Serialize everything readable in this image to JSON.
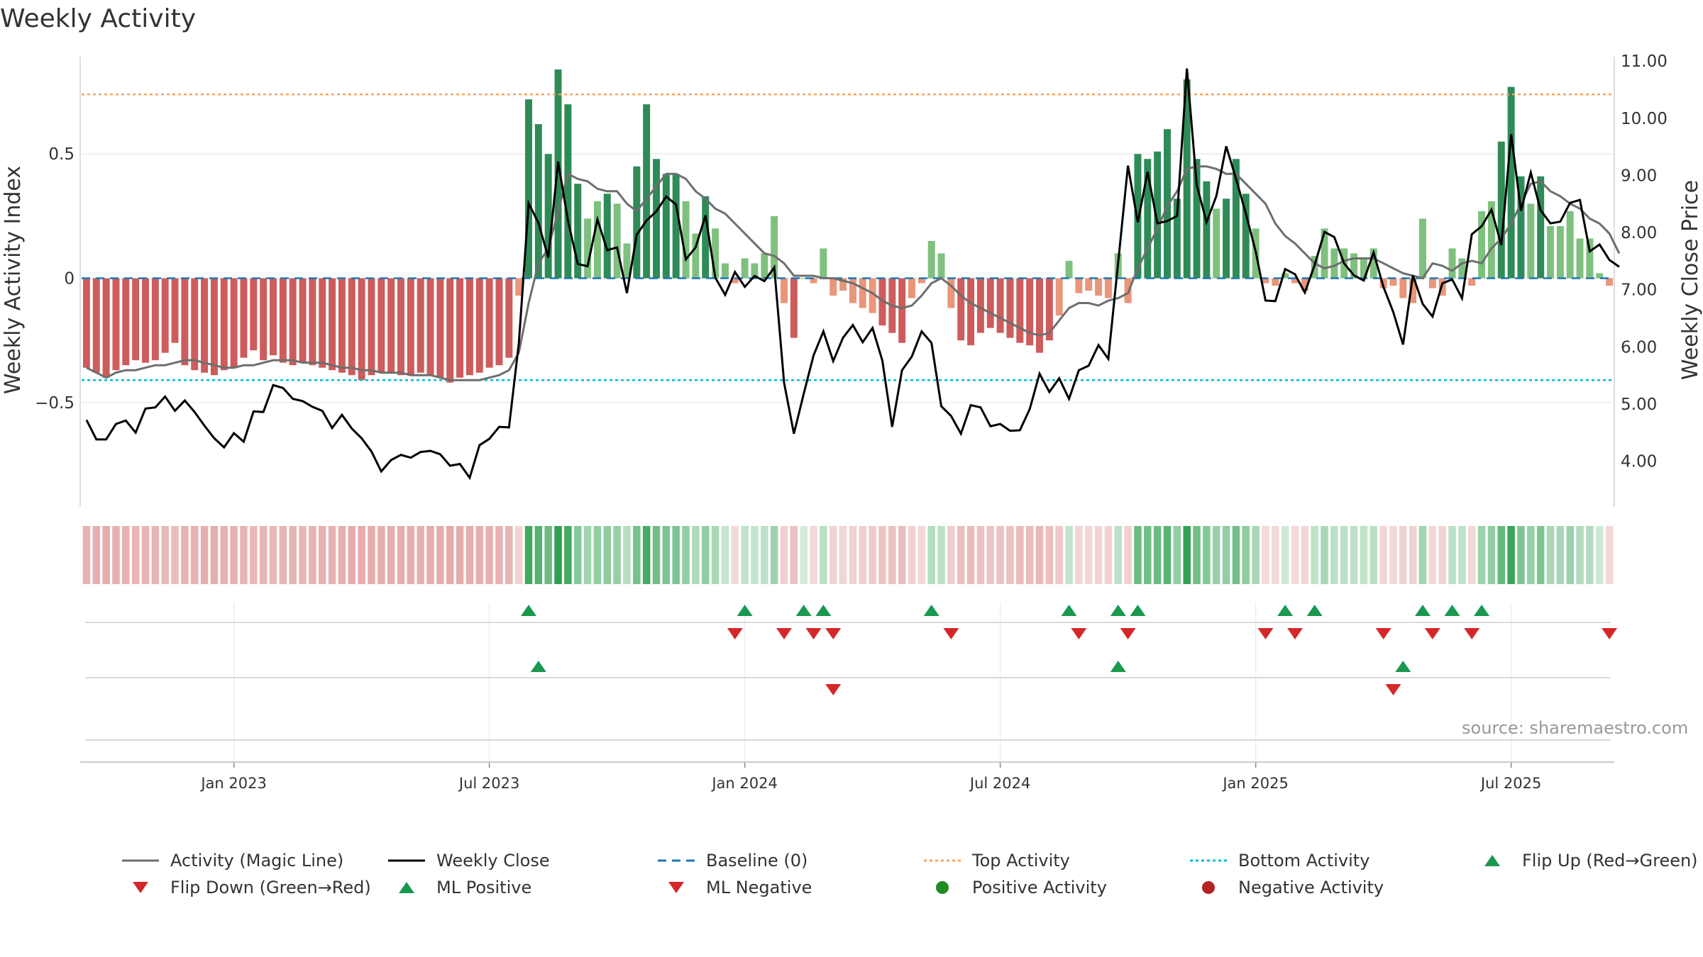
{
  "title": "Weekly Activity",
  "source": "source: sharemaestro.com",
  "chart_data": {
    "type": "bar",
    "title": "Weekly Activity",
    "ylabel_left": "Weekly Activity Index",
    "ylabel_right": "Weekly Close Price",
    "ylim_left": [
      -0.92,
      0.92
    ],
    "ylim_right": [
      3.2,
      11.2
    ],
    "left_ticks": [
      {
        "value": 0.5,
        "label": "0.5"
      },
      {
        "value": 0,
        "label": "0"
      },
      {
        "value": -0.5,
        "label": "−0.5"
      }
    ],
    "right_ticks": [
      {
        "value": 11,
        "label": "11.00"
      },
      {
        "value": 10,
        "label": "10.00"
      },
      {
        "value": 9,
        "label": "9.00"
      },
      {
        "value": 8,
        "label": "8.00"
      },
      {
        "value": 7,
        "label": "7.00"
      },
      {
        "value": 6,
        "label": "6.00"
      },
      {
        "value": 5,
        "label": "5.00"
      },
      {
        "value": 4,
        "label": "4.00"
      }
    ],
    "x_ticks": [
      {
        "week": 15,
        "label": "Jan 2023"
      },
      {
        "week": 41,
        "label": "Jul 2023"
      },
      {
        "week": 67,
        "label": "Jan 2024"
      },
      {
        "week": 93,
        "label": "Jul 2024"
      },
      {
        "week": 119,
        "label": "Jan 2025"
      },
      {
        "week": 145,
        "label": "Jul 2025"
      }
    ],
    "top_activity": 0.74,
    "bottom_activity": -0.41,
    "baseline": 0,
    "activity": [
      -0.36,
      -0.38,
      -0.4,
      -0.37,
      -0.35,
      -0.33,
      -0.34,
      -0.33,
      -0.3,
      -0.26,
      -0.35,
      -0.37,
      -0.38,
      -0.39,
      -0.37,
      -0.36,
      -0.32,
      -0.29,
      -0.33,
      -0.31,
      -0.34,
      -0.35,
      -0.34,
      -0.35,
      -0.36,
      -0.37,
      -0.38,
      -0.39,
      -0.41,
      -0.39,
      -0.38,
      -0.38,
      -0.39,
      -0.39,
      -0.38,
      -0.39,
      -0.4,
      -0.42,
      -0.4,
      -0.39,
      -0.38,
      -0.36,
      -0.35,
      -0.32,
      -0.07,
      0.72,
      0.62,
      0.5,
      0.84,
      0.7,
      0.38,
      0.24,
      0.31,
      0.34,
      0.3,
      0.14,
      0.45,
      0.7,
      0.48,
      0.42,
      0.42,
      0.31,
      0.18,
      0.33,
      0.2,
      0.06,
      -0.02,
      0.08,
      0.06,
      0.1,
      0.25,
      -0.1,
      -0.24,
      0,
      -0.02,
      0.12,
      -0.07,
      -0.05,
      -0.1,
      -0.12,
      -0.14,
      -0.19,
      -0.22,
      -0.26,
      -0.08,
      -0.02,
      0.15,
      0.1,
      -0.12,
      -0.25,
      -0.27,
      -0.22,
      -0.2,
      -0.22,
      -0.24,
      -0.26,
      -0.27,
      -0.3,
      -0.25,
      -0.15,
      0.07,
      -0.06,
      -0.05,
      -0.07,
      -0.08,
      0.1,
      -0.1,
      0.5,
      0.48,
      0.51,
      0.6,
      0.32,
      0.8,
      0.48,
      0.39,
      0.28,
      0.32,
      0.48,
      0.34,
      0.2,
      -0.02,
      -0.03,
      0.02,
      -0.02,
      -0.05,
      0.09,
      0.2,
      0.12,
      0.12,
      0.1,
      0.08,
      0.12,
      -0.04,
      -0.03,
      -0.08,
      -0.1,
      0.24,
      -0.04,
      -0.07,
      0.12,
      0.08,
      -0.03,
      0.27,
      0.31,
      0.55,
      0.77,
      0.41,
      0.3,
      0.41,
      0.21,
      0.21,
      0.27,
      0.16,
      0.16,
      0.02,
      -0.03
    ],
    "magic_line": [
      -0.36,
      -0.38,
      -0.4,
      -0.38,
      -0.37,
      -0.37,
      -0.36,
      -0.35,
      -0.35,
      -0.34,
      -0.33,
      -0.33,
      -0.34,
      -0.35,
      -0.36,
      -0.36,
      -0.35,
      -0.35,
      -0.34,
      -0.33,
      -0.33,
      -0.33,
      -0.34,
      -0.34,
      -0.34,
      -0.35,
      -0.36,
      -0.36,
      -0.37,
      -0.37,
      -0.38,
      -0.38,
      -0.38,
      -0.39,
      -0.39,
      -0.39,
      -0.4,
      -0.41,
      -0.41,
      -0.41,
      -0.41,
      -0.4,
      -0.39,
      -0.37,
      -0.3,
      -0.1,
      0.06,
      0.12,
      0.27,
      0.42,
      0.4,
      0.39,
      0.36,
      0.35,
      0.35,
      0.3,
      0.27,
      0.32,
      0.37,
      0.42,
      0.42,
      0.4,
      0.35,
      0.32,
      0.28,
      0.26,
      0.22,
      0.18,
      0.14,
      0.1,
      0.09,
      0.06,
      0.01,
      0.01,
      0.01,
      0.0,
      0.0,
      -0.01,
      -0.02,
      -0.04,
      -0.06,
      -0.09,
      -0.11,
      -0.12,
      -0.11,
      -0.07,
      -0.02,
      0.0,
      -0.03,
      -0.07,
      -0.1,
      -0.12,
      -0.14,
      -0.16,
      -0.18,
      -0.2,
      -0.22,
      -0.23,
      -0.22,
      -0.17,
      -0.12,
      -0.1,
      -0.1,
      -0.11,
      -0.09,
      -0.08,
      -0.06,
      0.04,
      0.12,
      0.2,
      0.29,
      0.35,
      0.44,
      0.45,
      0.45,
      0.44,
      0.42,
      0.42,
      0.38,
      0.34,
      0.3,
      0.22,
      0.17,
      0.14,
      0.1,
      0.06,
      0.04,
      0.05,
      0.07,
      0.08,
      0.08,
      0.08,
      0.06,
      0.04,
      0.02,
      0.01,
      0.0,
      0.06,
      0.05,
      0.03,
      0.06,
      0.07,
      0.06,
      0.12,
      0.16,
      0.22,
      0.3,
      0.38,
      0.39,
      0.35,
      0.33,
      0.3,
      0.28,
      0.24,
      0.22,
      0.18,
      0.1
    ],
    "weekly_close": [
      4.72,
      4.38,
      4.38,
      4.65,
      4.71,
      4.5,
      4.92,
      4.94,
      5.13,
      4.88,
      5.06,
      4.86,
      4.62,
      4.4,
      4.24,
      4.49,
      4.34,
      4.87,
      4.86,
      5.33,
      5.28,
      5.09,
      5.05,
      4.95,
      4.88,
      4.58,
      4.81,
      4.57,
      4.4,
      4.17,
      3.82,
      4.02,
      4.11,
      4.06,
      4.16,
      4.18,
      4.12,
      3.92,
      3.95,
      3.71,
      4.28,
      4.39,
      4.6,
      4.59,
      6.06,
      8.51,
      8.17,
      7.56,
      9.24,
      8.21,
      7.45,
      7.41,
      8.23,
      7.69,
      7.74,
      6.94,
      7.96,
      8.21,
      8.37,
      8.63,
      8.49,
      7.53,
      7.74,
      8.3,
      7.21,
      6.91,
      7.31,
      7.05,
      7.24,
      7.15,
      7.39,
      5.37,
      4.48,
      5.18,
      5.85,
      6.27,
      5.75,
      6.16,
      6.38,
      6.08,
      6.33,
      5.76,
      4.6,
      5.59,
      5.83,
      6.27,
      6.07,
      4.96,
      4.79,
      4.48,
      4.98,
      4.94,
      4.61,
      4.65,
      4.53,
      4.54,
      4.91,
      5.53,
      5.21,
      5.45,
      5.09,
      5.59,
      5.67,
      6.03,
      5.79,
      7.47,
      9.17,
      8.18,
      9.06,
      8.16,
      8.2,
      8.29,
      10.87,
      8.83,
      8.18,
      8.64,
      9.51,
      8.94,
      8.33,
      7.67,
      6.81,
      6.8,
      7.36,
      7.27,
      6.95,
      7.43,
      8.01,
      7.92,
      7.46,
      7.25,
      7.16,
      7.65,
      7.05,
      6.61,
      6.04,
      7.25,
      6.75,
      6.53,
      7.11,
      7.18,
      6.85,
      7.97,
      8.11,
      8.4,
      7.78,
      9.72,
      8.38,
      9.05,
      8.39,
      8.16,
      8.19,
      8.52,
      8.57,
      7.67,
      7.79,
      7.52,
      7.4
    ],
    "ml_positive_weeks": [
      46,
      105,
      134
    ],
    "ml_negative_weeks": [
      76,
      133
    ],
    "legend": [
      {
        "label": "Activity (Magic Line)",
        "kind": "line",
        "color": "#6e6e6e",
        "dash": ""
      },
      {
        "label": "Weekly Close",
        "kind": "line",
        "color": "#000000",
        "dash": ""
      },
      {
        "label": "Baseline (0)",
        "kind": "line",
        "color": "#1f77b4",
        "dash": "12,8"
      },
      {
        "label": "Top Activity",
        "kind": "line",
        "color": "#f4a460",
        "dash": "4,4"
      },
      {
        "label": "Bottom Activity",
        "kind": "line",
        "color": "#00bcd4",
        "dash": "4,4"
      },
      {
        "label": "Flip Up (Red→Green)",
        "kind": "tri-up",
        "color": "#1a9850"
      },
      {
        "label": "Flip Down (Green→Red)",
        "kind": "tri-down",
        "color": "#d62728"
      },
      {
        "label": "ML Positive",
        "kind": "tri-up",
        "color": "#1a9850"
      },
      {
        "label": "ML Negative",
        "kind": "tri-down",
        "color": "#d62728"
      },
      {
        "label": "Positive Activity",
        "kind": "dot",
        "color": "#228b22"
      },
      {
        "label": "Negative Activity",
        "kind": "dot",
        "color": "#b22222"
      }
    ]
  }
}
